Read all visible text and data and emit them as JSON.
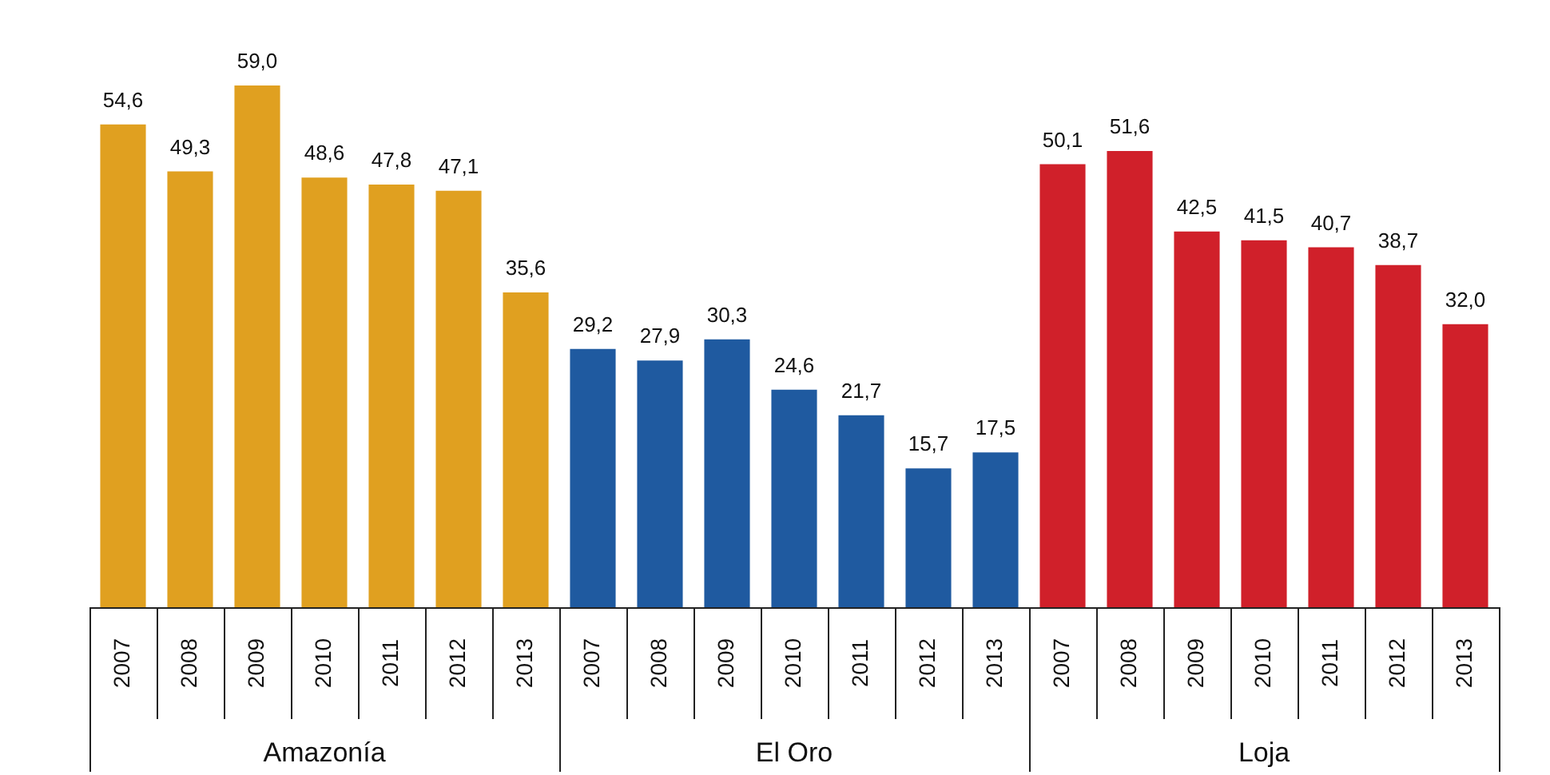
{
  "chart_data": {
    "type": "bar",
    "categories": [
      "2007",
      "2008",
      "2009",
      "2010",
      "2011",
      "2012",
      "2013",
      "2007",
      "2008",
      "2009",
      "2010",
      "2011",
      "2012",
      "2013",
      "2007",
      "2008",
      "2009",
      "2010",
      "2011",
      "2012",
      "2013"
    ],
    "series": [
      {
        "name": "Amazonía",
        "color": "#e0a020",
        "values": [
          54.6,
          49.3,
          59.0,
          48.6,
          47.8,
          47.1,
          35.6,
          null,
          null,
          null,
          null,
          null,
          null,
          null,
          null,
          null,
          null,
          null,
          null,
          null,
          null
        ],
        "value_labels": [
          "54,6",
          "49,3",
          "59,0",
          "48,6",
          "47,8",
          "47,1",
          "35,6",
          null,
          null,
          null,
          null,
          null,
          null,
          null,
          null,
          null,
          null,
          null,
          null,
          null,
          null
        ]
      },
      {
        "name": "El Oro",
        "color": "#1f5aa0",
        "values": [
          null,
          null,
          null,
          null,
          null,
          null,
          null,
          29.2,
          27.9,
          30.3,
          24.6,
          21.7,
          15.7,
          17.5,
          null,
          null,
          null,
          null,
          null,
          null,
          null
        ],
        "value_labels": [
          null,
          null,
          null,
          null,
          null,
          null,
          null,
          "29,2",
          "27,9",
          "30,3",
          "24,6",
          "21,7",
          "15,7",
          "17,5",
          null,
          null,
          null,
          null,
          null,
          null,
          null
        ]
      },
      {
        "name": "Loja",
        "color": "#d0202a",
        "values": [
          null,
          null,
          null,
          null,
          null,
          null,
          null,
          null,
          null,
          null,
          null,
          null,
          null,
          null,
          50.1,
          51.6,
          42.5,
          41.5,
          40.7,
          38.7,
          32.0
        ],
        "value_labels": [
          null,
          null,
          null,
          null,
          null,
          null,
          null,
          null,
          null,
          null,
          null,
          null,
          null,
          null,
          "50,1",
          "51,6",
          "42,5",
          "41,5",
          "40,7",
          "38,7",
          "32,0"
        ]
      }
    ],
    "legend": false
  }
}
